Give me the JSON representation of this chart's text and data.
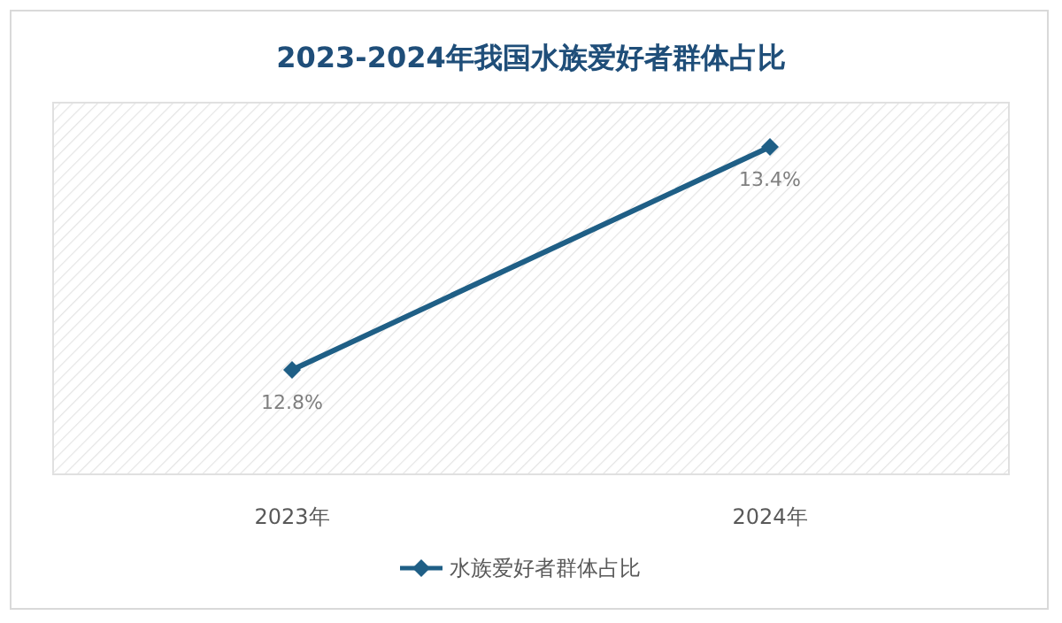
{
  "chart_data": {
    "type": "line",
    "title": "2023-2024年我国水族爱好者群体占比",
    "categories": [
      "2023年",
      "2024年"
    ],
    "series": [
      {
        "name": "水族爱好者群体占比",
        "color": "#1f5f86",
        "values": [
          12.8,
          13.4
        ],
        "value_labels": [
          "12.8%",
          "13.4%"
        ]
      }
    ],
    "marker": "diamond",
    "legend": "bottom"
  }
}
